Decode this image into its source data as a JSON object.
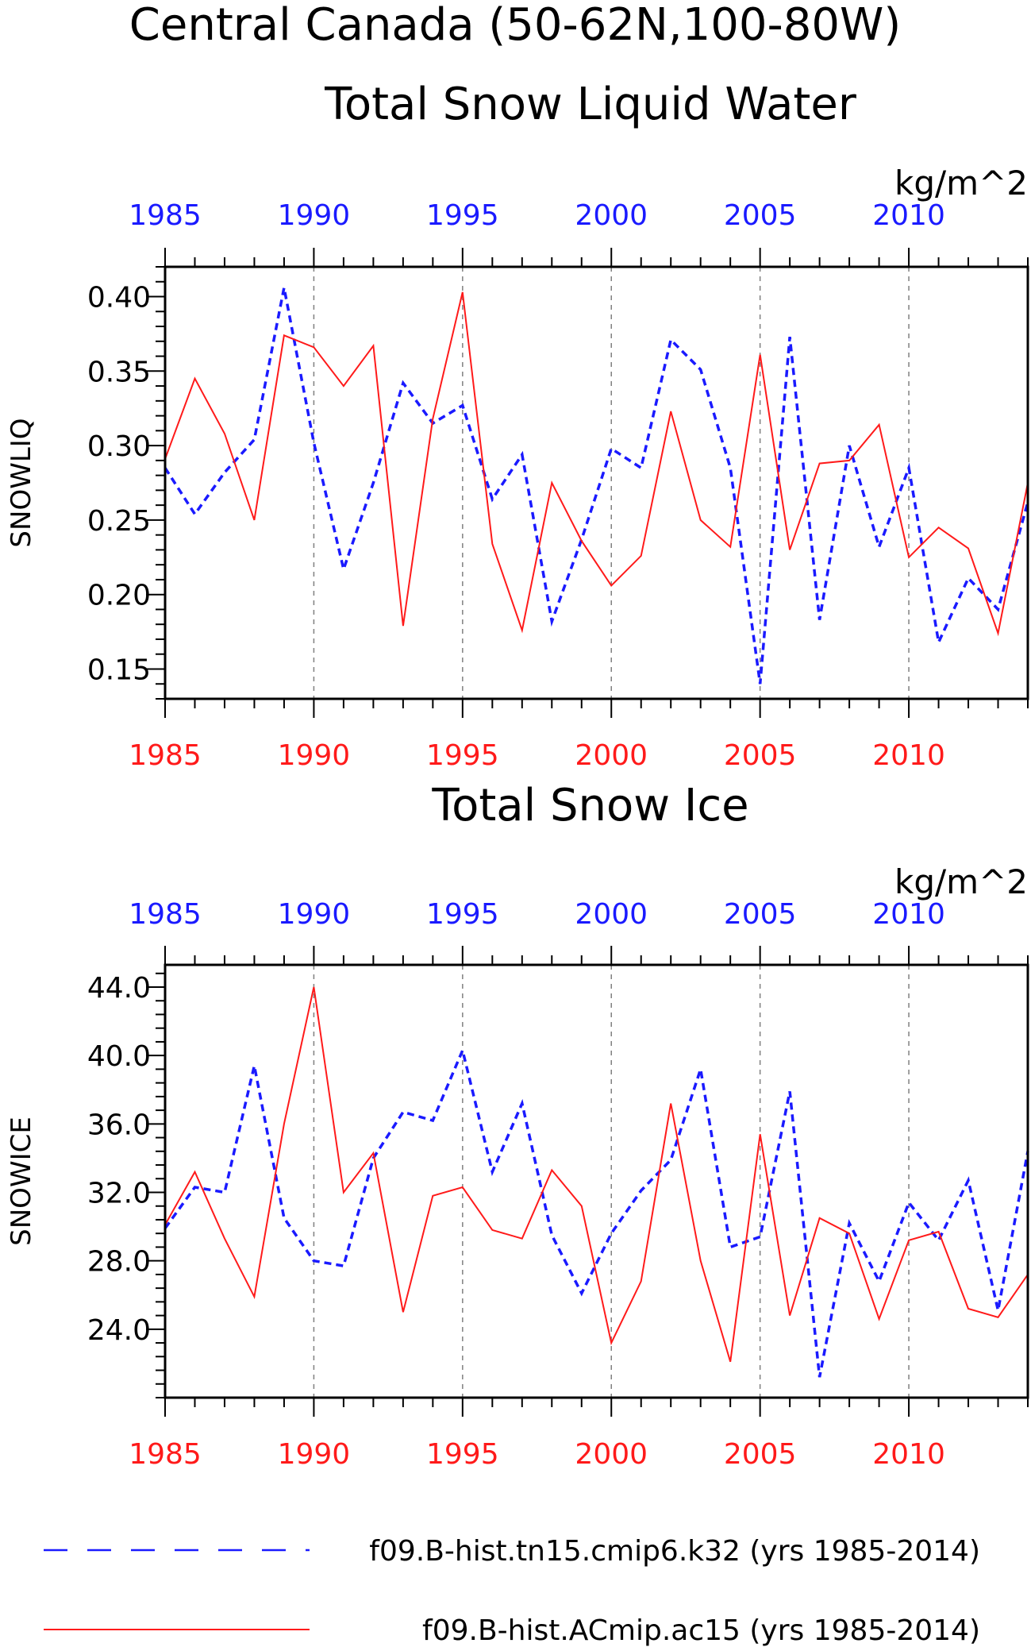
{
  "figure": {
    "title": "Central Canada (50-62N,100-80W)",
    "colors": {
      "blue": "#1a1aff",
      "red": "#ff1a1a",
      "axis": "#000000",
      "grid": "#808080"
    }
  },
  "chart_data": [
    {
      "type": "line",
      "title": "Total Snow Liquid Water",
      "units": "kg/m^2",
      "ylabel": "SNOWLIQ",
      "xlim": [
        1985,
        2014
      ],
      "ylim": [
        0.13,
        0.42
      ],
      "yticks": [
        "0.15",
        "0.20",
        "0.25",
        "0.30",
        "0.35",
        "0.40"
      ],
      "xticks": [
        "1985",
        "1990",
        "1995",
        "2000",
        "2005",
        "2010"
      ],
      "grid": "vertical dashed at major x ticks",
      "x": [
        1985,
        1986,
        1987,
        1988,
        1989,
        1990,
        1991,
        1992,
        1993,
        1994,
        1995,
        1996,
        1997,
        1998,
        1999,
        2000,
        2001,
        2002,
        2003,
        2004,
        2005,
        2006,
        2007,
        2008,
        2009,
        2010,
        2011,
        2012,
        2013,
        2014
      ],
      "series": [
        {
          "name": "f09.B-hist.tn15.cmip6.k32 (yrs 1985-2014)",
          "style": "dashed",
          "color": "#1a1aff",
          "values": [
            0.285,
            0.254,
            0.282,
            0.304,
            0.406,
            0.302,
            0.217,
            0.275,
            0.342,
            0.315,
            0.327,
            0.264,
            0.294,
            0.182,
            0.237,
            0.298,
            0.285,
            0.371,
            0.351,
            0.285,
            0.14,
            0.373,
            0.183,
            0.3,
            0.232,
            0.285,
            0.168,
            0.211,
            0.19,
            0.262
          ]
        },
        {
          "name": "f09.B-hist.ACmip.ac15 (yrs 1985-2014)",
          "style": "solid",
          "color": "#ff1a1a",
          "values": [
            0.291,
            0.345,
            0.308,
            0.25,
            0.374,
            0.366,
            0.34,
            0.367,
            0.179,
            0.318,
            0.403,
            0.234,
            0.176,
            0.275,
            0.236,
            0.206,
            0.226,
            0.323,
            0.25,
            0.232,
            0.361,
            0.23,
            0.288,
            0.29,
            0.314,
            0.225,
            0.245,
            0.231,
            0.174,
            0.275
          ]
        }
      ]
    },
    {
      "type": "line",
      "title": "Total Snow Ice",
      "units": "kg/m^2",
      "ylabel": "SNOWICE",
      "xlim": [
        1985,
        2014
      ],
      "ylim": [
        20.0,
        45.3
      ],
      "yticks": [
        "24.0",
        "28.0",
        "32.0",
        "36.0",
        "40.0",
        "44.0"
      ],
      "xticks": [
        "1985",
        "1990",
        "1995",
        "2000",
        "2005",
        "2010"
      ],
      "grid": "vertical dashed at major x ticks",
      "x": [
        1985,
        1986,
        1987,
        1988,
        1989,
        1990,
        1991,
        1992,
        1993,
        1994,
        1995,
        1996,
        1997,
        1998,
        1999,
        2000,
        2001,
        2002,
        2003,
        2004,
        2005,
        2006,
        2007,
        2008,
        2009,
        2010,
        2011,
        2012,
        2013,
        2014
      ],
      "series": [
        {
          "name": "f09.B-hist.tn15.cmip6.k32 (yrs 1985-2014)",
          "style": "dashed",
          "color": "#1a1aff",
          "values": [
            29.9,
            32.3,
            32.0,
            39.4,
            30.5,
            28.0,
            27.7,
            34.0,
            36.7,
            36.2,
            40.3,
            33.2,
            37.2,
            29.5,
            26.1,
            29.6,
            32.1,
            33.9,
            39.2,
            28.8,
            29.4,
            37.9,
            21.2,
            30.2,
            26.8,
            31.4,
            29.2,
            32.7,
            25.1,
            34.4
          ]
        },
        {
          "name": "f09.B-hist.ACmip.ac15 (yrs 1985-2014)",
          "style": "solid",
          "color": "#ff1a1a",
          "values": [
            30.1,
            33.2,
            29.3,
            25.9,
            36.0,
            44.0,
            32.0,
            34.3,
            25.0,
            31.8,
            32.3,
            29.8,
            29.3,
            33.3,
            31.2,
            23.2,
            26.8,
            37.2,
            28.0,
            22.1,
            35.4,
            24.8,
            30.5,
            29.6,
            24.6,
            29.2,
            29.7,
            25.2,
            24.7,
            27.2
          ]
        }
      ]
    }
  ],
  "legend": [
    {
      "label": "f09.B-hist.tn15.cmip6.k32 (yrs 1985-2014)",
      "style": "dashed",
      "color": "#1a1aff"
    },
    {
      "label": "f09.B-hist.ACmip.ac15 (yrs 1985-2014)",
      "style": "solid",
      "color": "#ff1a1a"
    }
  ]
}
